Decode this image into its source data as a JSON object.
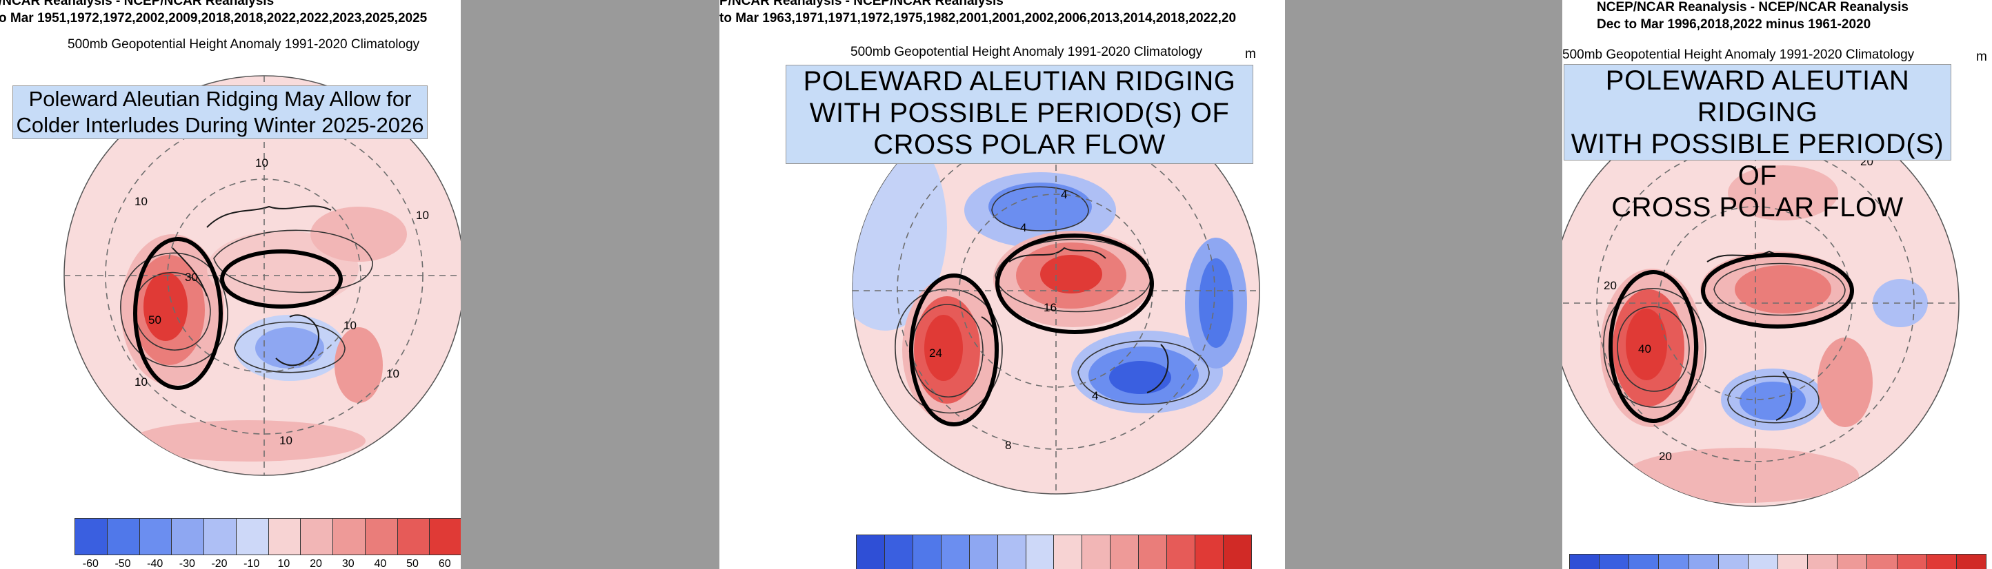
{
  "panels": [
    {
      "title_line1": "/NCAR Reanalysis - NCEP/NCAR Reanalysis",
      "title_line2": "o Mar 1951,1972,1972,2002,2009,2018,2018,2022,2022,2023,2025,2025",
      "subtitle": "500mb Geopotential Height Anomaly  1991-2020 Climatology",
      "callout": [
        "Poleward Aleutian Ridging May Allow for",
        "Colder Interludes During Winter 2025-2026"
      ],
      "contour_labels": [
        "10",
        "10",
        "10",
        "30",
        "50",
        "10",
        "10",
        "10",
        "10"
      ],
      "colorbar_labels": [
        "-60",
        "-50",
        "-40",
        "-30",
        "-20",
        "-10",
        "10",
        "20",
        "30",
        "40",
        "50",
        "60"
      ]
    },
    {
      "title_line1": "P/NCAR Reanalysis - NCEP/NCAR Reanalysis",
      "title_line2": "to Mar 1963,1971,1971,1972,1975,1982,2001,2001,2002,2006,2013,2014,2018,2022,20",
      "subtitle": "500mb Geopotential Height Anomaly  1991-2020 Climatology",
      "unit": "m",
      "callout": [
        "POLEWARD ALEUTIAN RIDGING",
        "WITH POSSIBLE PERIOD(S) OF",
        "CROSS POLAR FLOW"
      ],
      "contour_labels": [
        "4",
        "4",
        "16",
        "24",
        "8",
        "4"
      ]
    },
    {
      "title_line1": "NCEP/NCAR Reanalysis - NCEP/NCAR Reanalysis",
      "title_line2": "Dec to Mar 1996,2018,2022 minus 1961-2020",
      "subtitle": "500mb Geopotential Height Anomaly  1991-2020 Climatology",
      "unit": "m",
      "callout": [
        "POLEWARD ALEUTIAN RIDGING",
        "WITH POSSIBLE PERIOD(S) OF",
        "CROSS POLAR FLOW"
      ],
      "contour_labels": [
        "20",
        "20",
        "40",
        "20"
      ]
    }
  ],
  "colors": {
    "scale": [
      "#3a5fe0",
      "#5078ea",
      "#6b8ef0",
      "#8ea7f2",
      "#aebff5",
      "#cdd8f8",
      "#f7d3d3",
      "#f2b6b6",
      "#ee9a98",
      "#ea7d7a",
      "#e65b58",
      "#e03a36"
    ],
    "callout_fill": "#c7dcf7",
    "divider_gray": "#9a9a9a"
  }
}
